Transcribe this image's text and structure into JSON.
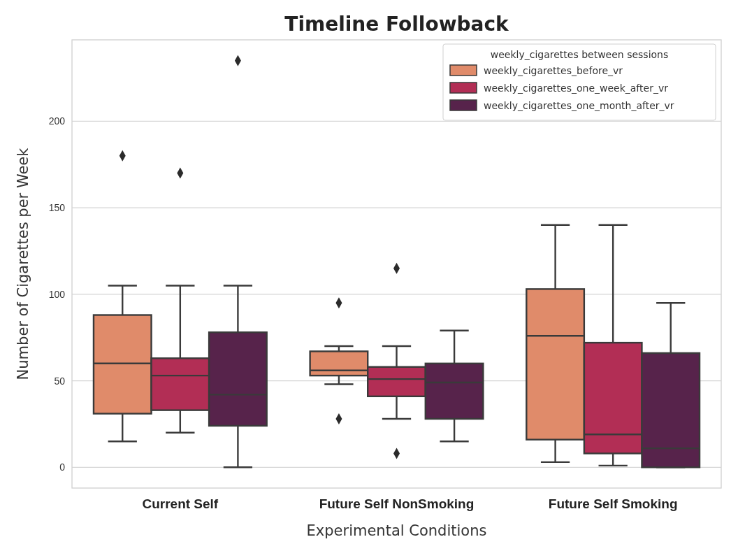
{
  "chart_data": {
    "type": "box",
    "title": "Timeline Followback",
    "xlabel": "Experimental Conditions",
    "ylabel": "Number of Cigarettes per Week",
    "legend_title": "weekly_cigarettes between sessions",
    "categories": [
      "Current Self",
      "Future Self NonSmoking",
      "Future Self Smoking"
    ],
    "ylim": [
      -12,
      247
    ],
    "yticks": [
      0,
      50,
      100,
      150,
      200
    ],
    "grid": "y",
    "legend": "top right",
    "series": [
      {
        "name": "weekly_cigarettes_before_vr",
        "color": "#e08b6a",
        "boxes": [
          {
            "low": 15,
            "q1": 31,
            "median": 60,
            "q3": 88,
            "high": 105,
            "outliers": [
              180
            ]
          },
          {
            "low": 48,
            "q1": 53,
            "median": 56,
            "q3": 67,
            "high": 70,
            "outliers": [
              95,
              28
            ]
          },
          {
            "low": 3,
            "q1": 16,
            "median": 76,
            "q3": 103,
            "high": 140
          }
        ]
      },
      {
        "name": "weekly_cigarettes_one_week_after_vr",
        "color": "#b22e55",
        "boxes": [
          {
            "low": 20,
            "q1": 33,
            "median": 53,
            "q3": 63,
            "high": 105,
            "outliers": [
              170
            ]
          },
          {
            "low": 28,
            "q1": 41,
            "median": 51,
            "q3": 58,
            "high": 70,
            "outliers": [
              115,
              8
            ]
          },
          {
            "low": 1,
            "q1": 8,
            "median": 19,
            "q3": 72,
            "high": 140
          }
        ]
      },
      {
        "name": "weekly_cigarettes_one_month_after_vr",
        "color": "#57234b",
        "boxes": [
          {
            "low": 0,
            "q1": 24,
            "median": 42,
            "q3": 78,
            "high": 105,
            "outliers": [
              235
            ]
          },
          {
            "low": 15,
            "q1": 28,
            "median": 49,
            "q3": 60,
            "high": 79
          },
          {
            "low": 0,
            "q1": 0,
            "median": 11,
            "q3": 66,
            "high": 95
          }
        ]
      }
    ]
  }
}
